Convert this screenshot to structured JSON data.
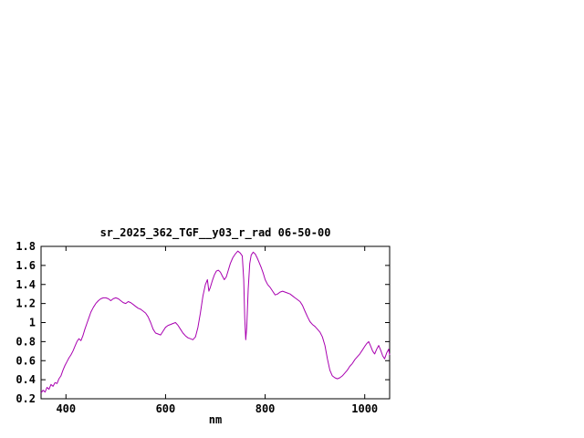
{
  "page": {
    "background": "#ffffff",
    "text_color": "#000000"
  },
  "chart_data": {
    "type": "line",
    "title": "sr_2025_362_TGF__y03_r_rad 06-50-00",
    "xlabel": "nm",
    "ylabel": "",
    "xlim": [
      350,
      1050
    ],
    "ylim": [
      0.2,
      1.8
    ],
    "x_ticks": [
      400,
      600,
      800,
      1000
    ],
    "x_tick_labels": [
      "400",
      "600",
      "800",
      "1000"
    ],
    "y_ticks": [
      0.2,
      0.4,
      0.6,
      0.8,
      1.0,
      1.2,
      1.4,
      1.6,
      1.8
    ],
    "y_tick_labels": [
      "0.2",
      "0.4",
      "0.6",
      "0.8",
      "1",
      "1.2",
      "1.4",
      "1.6",
      "1.8"
    ],
    "grid": false,
    "legend": "none",
    "line_color": "#a800b0",
    "series": [
      {
        "name": "sr_2025_362_TGF__y03_r_rad",
        "x": [
          350,
          354,
          358,
          362,
          366,
          370,
          374,
          378,
          382,
          386,
          390,
          394,
          398,
          402,
          406,
          410,
          414,
          418,
          422,
          426,
          430,
          434,
          438,
          442,
          446,
          450,
          455,
          460,
          465,
          470,
          475,
          480,
          485,
          490,
          495,
          500,
          505,
          510,
          515,
          520,
          525,
          530,
          535,
          540,
          545,
          550,
          555,
          560,
          565,
          570,
          575,
          580,
          585,
          590,
          595,
          600,
          605,
          610,
          615,
          620,
          625,
          630,
          635,
          640,
          645,
          650,
          655,
          660,
          665,
          670,
          675,
          680,
          684,
          687,
          690,
          694,
          698,
          702,
          706,
          710,
          714,
          718,
          722,
          726,
          730,
          735,
          740,
          745,
          750,
          754,
          757,
          759,
          761,
          763,
          766,
          769,
          772,
          776,
          780,
          784,
          788,
          792,
          796,
          800,
          805,
          810,
          815,
          820,
          825,
          830,
          835,
          840,
          845,
          850,
          855,
          860,
          865,
          870,
          875,
          880,
          885,
          890,
          895,
          900,
          905,
          910,
          915,
          920,
          925,
          930,
          935,
          940,
          945,
          950,
          955,
          960,
          965,
          970,
          975,
          980,
          985,
          990,
          995,
          1000,
          1004,
          1008,
          1012,
          1016,
          1020,
          1024,
          1028,
          1032,
          1036,
          1040,
          1044,
          1048,
          1050
        ],
        "y": [
          0.26,
          0.29,
          0.27,
          0.32,
          0.3,
          0.35,
          0.33,
          0.37,
          0.36,
          0.41,
          0.44,
          0.5,
          0.55,
          0.59,
          0.63,
          0.66,
          0.7,
          0.75,
          0.8,
          0.83,
          0.81,
          0.86,
          0.93,
          0.99,
          1.05,
          1.11,
          1.16,
          1.2,
          1.23,
          1.25,
          1.26,
          1.26,
          1.25,
          1.23,
          1.25,
          1.26,
          1.25,
          1.23,
          1.21,
          1.2,
          1.22,
          1.21,
          1.19,
          1.17,
          1.15,
          1.14,
          1.12,
          1.1,
          1.06,
          1.0,
          0.93,
          0.89,
          0.88,
          0.87,
          0.91,
          0.95,
          0.97,
          0.98,
          0.99,
          1.0,
          0.97,
          0.93,
          0.89,
          0.86,
          0.84,
          0.83,
          0.82,
          0.85,
          0.95,
          1.1,
          1.28,
          1.4,
          1.45,
          1.33,
          1.37,
          1.44,
          1.5,
          1.54,
          1.55,
          1.53,
          1.49,
          1.45,
          1.48,
          1.55,
          1.62,
          1.68,
          1.72,
          1.75,
          1.73,
          1.7,
          1.45,
          1.05,
          0.82,
          0.95,
          1.35,
          1.62,
          1.71,
          1.74,
          1.72,
          1.68,
          1.63,
          1.58,
          1.52,
          1.45,
          1.4,
          1.37,
          1.33,
          1.29,
          1.3,
          1.32,
          1.33,
          1.32,
          1.31,
          1.3,
          1.28,
          1.26,
          1.24,
          1.22,
          1.18,
          1.12,
          1.06,
          1.01,
          0.98,
          0.96,
          0.93,
          0.9,
          0.85,
          0.76,
          0.62,
          0.5,
          0.44,
          0.42,
          0.41,
          0.42,
          0.44,
          0.47,
          0.5,
          0.54,
          0.57,
          0.61,
          0.64,
          0.67,
          0.71,
          0.75,
          0.78,
          0.8,
          0.75,
          0.7,
          0.67,
          0.72,
          0.76,
          0.71,
          0.65,
          0.62,
          0.68,
          0.72,
          0.66
        ]
      }
    ]
  }
}
